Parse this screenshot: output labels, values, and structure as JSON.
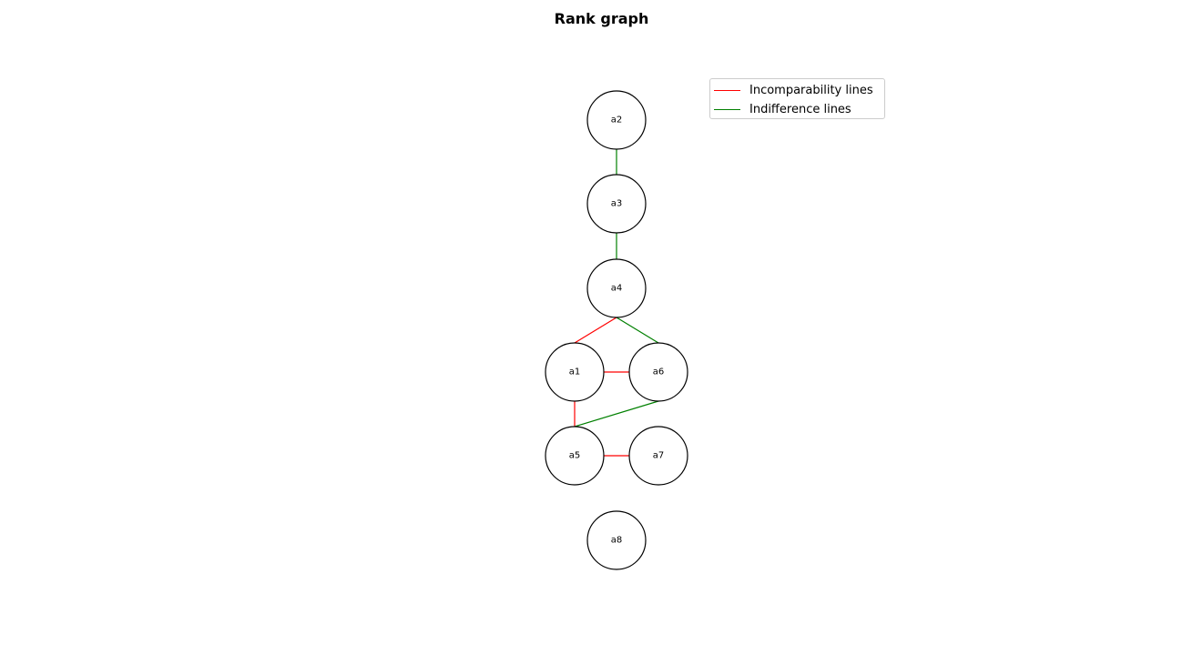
{
  "title": "Rank graph",
  "colors": {
    "incomparability": "#ff0000",
    "indifference": "#008000",
    "node_stroke": "#000000",
    "node_fill": "#ffffff"
  },
  "legend": {
    "placement": "top-right",
    "items": [
      {
        "label": "Incomparability lines",
        "color": "#ff0000"
      },
      {
        "label": "Indifference lines",
        "color": "#008000"
      }
    ]
  },
  "nodes": [
    {
      "id": "a2",
      "label": "a2",
      "rank": 1
    },
    {
      "id": "a3",
      "label": "a3",
      "rank": 2
    },
    {
      "id": "a4",
      "label": "a4",
      "rank": 3
    },
    {
      "id": "a1",
      "label": "a1",
      "rank": 4
    },
    {
      "id": "a6",
      "label": "a6",
      "rank": 4
    },
    {
      "id": "a5",
      "label": "a5",
      "rank": 5
    },
    {
      "id": "a7",
      "label": "a7",
      "rank": 5
    },
    {
      "id": "a8",
      "label": "a8",
      "rank": 6
    }
  ],
  "edges": [
    {
      "from": "a2",
      "to": "a3",
      "type": "indifference"
    },
    {
      "from": "a3",
      "to": "a4",
      "type": "indifference"
    },
    {
      "from": "a4",
      "to": "a1",
      "type": "incomparability"
    },
    {
      "from": "a4",
      "to": "a6",
      "type": "indifference"
    },
    {
      "from": "a1",
      "to": "a6",
      "type": "incomparability"
    },
    {
      "from": "a1",
      "to": "a5",
      "type": "incomparability"
    },
    {
      "from": "a6",
      "to": "a5",
      "type": "indifference"
    },
    {
      "from": "a5",
      "to": "a7",
      "type": "incomparability"
    }
  ]
}
